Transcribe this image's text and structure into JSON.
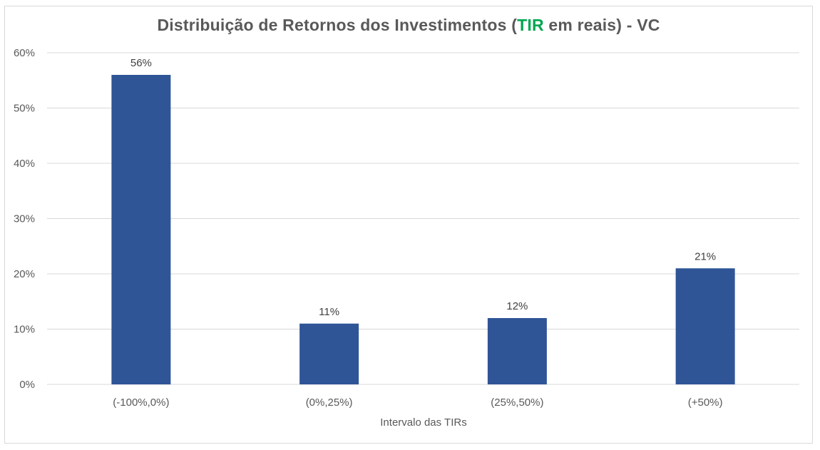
{
  "chart_data": {
    "type": "bar",
    "title_parts": {
      "before": "Distribuição de Retornos dos Investimentos (",
      "highlight": "TIR",
      "after": " em reais) - VC"
    },
    "highlight_color": "#00a651",
    "categories": [
      "(-100%,0%)",
      "(0%,25%)",
      "(25%,50%)",
      "(+50%)"
    ],
    "values": [
      56,
      11,
      12,
      21
    ],
    "data_labels": [
      "56%",
      "11%",
      "12%",
      "21%"
    ],
    "xlabel": "Intervalo das TIRs",
    "ylabel": "",
    "ylim": [
      0,
      60
    ],
    "y_ticks": [
      0,
      10,
      20,
      30,
      40,
      50,
      60
    ],
    "y_tick_labels": [
      "0%",
      "10%",
      "20%",
      "30%",
      "40%",
      "50%",
      "60%"
    ],
    "grid": true,
    "legend": "none",
    "bar_color": "#2f5597",
    "grid_color": "#d9d9d9"
  }
}
